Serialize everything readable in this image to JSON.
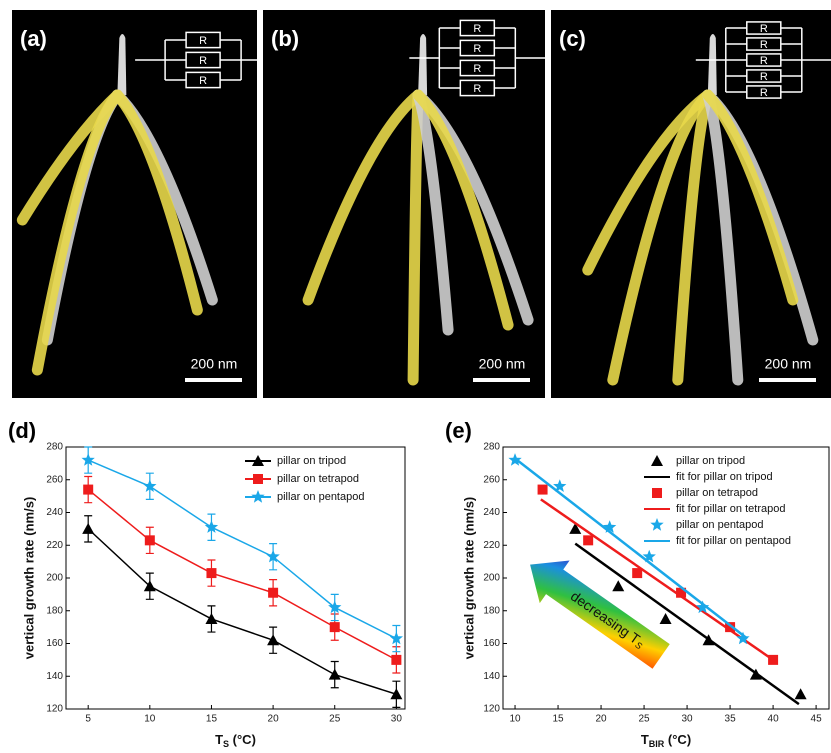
{
  "images": [
    {
      "label": "(a)",
      "scale_bar": "200 nm",
      "resistors": [
        "R",
        "R",
        "R"
      ]
    },
    {
      "label": "(b)",
      "scale_bar": "200 nm",
      "resistors": [
        "R",
        "R",
        "R",
        "R"
      ]
    },
    {
      "label": "(c)",
      "scale_bar": "200 nm",
      "resistors": [
        "R",
        "R",
        "R",
        "R",
        "R"
      ]
    }
  ],
  "chart_data": [
    {
      "type": "line",
      "label": "(d)",
      "y_label": "vertical growth rate (nm/s)",
      "x_label": "T",
      "x_label_sub": "S",
      "x_label_unit": " (°C)",
      "x": [
        5,
        10,
        15,
        20,
        25,
        30
      ],
      "xlim": [
        3.2,
        30.7
      ],
      "xticks": [
        5,
        10,
        15,
        20,
        25,
        30
      ],
      "ylim": [
        120,
        280
      ],
      "yticks": [
        120,
        140,
        160,
        180,
        200,
        220,
        240,
        260,
        280
      ],
      "legend": "upper right",
      "series": [
        {
          "name": "pillar on tripod",
          "color": "#000000",
          "marker": "triangle",
          "values": [
            230,
            195,
            175,
            162,
            141,
            129
          ],
          "errors": [
            8,
            8,
            8,
            8,
            8,
            8
          ]
        },
        {
          "name": "pillar on tetrapod",
          "color": "#ee1c1c",
          "marker": "square",
          "values": [
            254,
            223,
            203,
            191,
            170,
            150
          ],
          "errors": [
            8,
            8,
            8,
            8,
            8,
            8
          ]
        },
        {
          "name": "pillar on pentapod",
          "color": "#1aa7e8",
          "marker": "star",
          "values": [
            272,
            256,
            231,
            213,
            182,
            163
          ],
          "errors": [
            8,
            8,
            8,
            8,
            8,
            8
          ]
        }
      ]
    },
    {
      "type": "scatter",
      "label": "(e)",
      "y_label": "vertical growth rate (nm/s)",
      "x_label": "T",
      "x_label_sub": "BIR",
      "x_label_unit": " (°C)",
      "xlim": [
        8.6,
        46.5
      ],
      "xticks": [
        10,
        15,
        20,
        25,
        30,
        35,
        40,
        45
      ],
      "ylim": [
        120,
        280
      ],
      "yticks": [
        120,
        140,
        160,
        180,
        200,
        220,
        240,
        260,
        280
      ],
      "legend": "upper right",
      "annotation": "decreasing T",
      "annotation_sub": "S",
      "series": [
        {
          "name": "pillar on tripod",
          "color": "#000000",
          "marker": "triangle",
          "x": [
            17,
            22,
            27.5,
            32.5,
            38,
            43.2
          ],
          "values": [
            230,
            195,
            175,
            162,
            141,
            129
          ]
        },
        {
          "name": "fit for pillar on tripod",
          "color": "#000000",
          "marker": "fit",
          "x": [
            17,
            43
          ],
          "values": [
            221,
            123
          ]
        },
        {
          "name": "pillar on tetrapod",
          "color": "#ee1c1c",
          "marker": "square",
          "x": [
            13.2,
            18.5,
            24.2,
            29.3,
            35,
            40
          ],
          "values": [
            254,
            223,
            203,
            191,
            170,
            150
          ]
        },
        {
          "name": "fit for pillar on tetrapod",
          "color": "#ee1c1c",
          "marker": "fit",
          "x": [
            13,
            40
          ],
          "values": [
            248,
            150
          ]
        },
        {
          "name": "pillar on pentapod",
          "color": "#1aa7e8",
          "marker": "star",
          "x": [
            10,
            15.2,
            21,
            25.6,
            31.8,
            36.5
          ],
          "values": [
            272,
            256,
            231,
            213,
            182,
            163
          ]
        },
        {
          "name": "fit for pillar on pentapod",
          "color": "#1aa7e8",
          "marker": "fit",
          "x": [
            10,
            37
          ],
          "values": [
            273,
            163
          ]
        }
      ]
    }
  ]
}
